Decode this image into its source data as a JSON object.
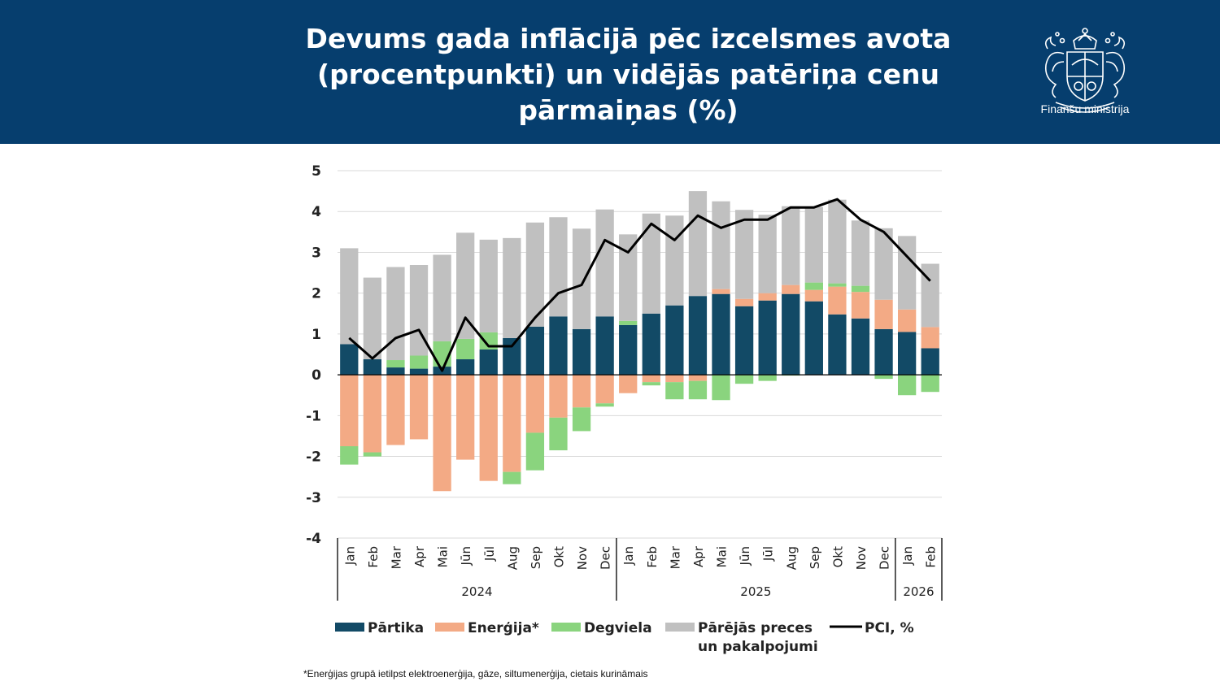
{
  "header": {
    "title": "Devums gada inflācijā pēc izcelsmes avota (procentpunkti) un vidējās patēriņa cenu pārmaiņas (%)",
    "logo_text": "Finanšu ministrija",
    "logo_icon": "coat-of-arms-icon",
    "background": "#063e6e"
  },
  "footnote": "*Enerģijas grupā ietilpst elektroenerģija, gāze, siltumenerģija, cietais kurināmais",
  "chart_data": {
    "type": "bar",
    "stacked": true,
    "categories": [
      "Jan",
      "Feb",
      "Mar",
      "Apr",
      "Mai",
      "Jūn",
      "Jūl",
      "Aug",
      "Sep",
      "Okt",
      "Nov",
      "Dec",
      "Jan",
      "Feb",
      "Mar",
      "Apr",
      "Mai",
      "Jūn",
      "Jūl",
      "Aug",
      "Sep",
      "Okt",
      "Nov",
      "Dec",
      "Jan",
      "Feb"
    ],
    "year_groups": [
      {
        "label": "2024",
        "start": 0,
        "end": 11
      },
      {
        "label": "2025",
        "start": 12,
        "end": 23
      },
      {
        "label": "2026",
        "start": 24,
        "end": 25
      }
    ],
    "ylim": [
      -4,
      5
    ],
    "yticks": [
      5,
      4,
      3,
      2,
      1,
      0,
      -1,
      -2,
      -3,
      -4
    ],
    "ytick_labels": [
      "5",
      "4",
      "3",
      "2",
      "1",
      "0",
      "-1",
      "-2",
      "-3",
      "-4"
    ],
    "grid": true,
    "legend_position": "bottom",
    "series": [
      {
        "name": "Pārtika",
        "color": "#124a66",
        "values": [
          0.75,
          0.38,
          0.18,
          0.15,
          0.2,
          0.38,
          0.62,
          0.9,
          1.18,
          1.43,
          1.12,
          1.43,
          1.22,
          1.5,
          1.7,
          1.93,
          1.98,
          1.68,
          1.82,
          1.98,
          1.8,
          1.48,
          1.38,
          1.12,
          1.05,
          0.65
        ]
      },
      {
        "name": "Enerģija*",
        "color": "#f3aa85",
        "values": [
          -1.75,
          -1.9,
          -1.72,
          -1.58,
          -2.85,
          -2.08,
          -2.6,
          -2.38,
          -1.42,
          -1.05,
          -0.8,
          -0.7,
          -0.45,
          -0.18,
          -0.18,
          -0.15,
          0.12,
          0.18,
          0.18,
          0.22,
          0.28,
          0.68,
          0.65,
          0.72,
          0.55,
          0.52
        ]
      },
      {
        "name": "Degviela",
        "color": "#8ad47e",
        "values": [
          -0.45,
          -0.1,
          0.18,
          0.32,
          0.62,
          0.5,
          0.42,
          -0.3,
          -0.92,
          -0.8,
          -0.58,
          -0.08,
          0.1,
          -0.08,
          -0.42,
          -0.45,
          -0.62,
          -0.22,
          -0.15,
          -0.02,
          0.18,
          0.08,
          0.15,
          -0.1,
          -0.5,
          -0.42
        ]
      },
      {
        "name": "Pārējās preces un pakalpojumi",
        "name_lines": [
          "Pārējās preces",
          "un pakalpojumi"
        ],
        "color": "#c0c0c0",
        "values": [
          2.35,
          2.0,
          2.28,
          2.22,
          2.12,
          2.6,
          2.27,
          2.45,
          2.55,
          2.43,
          2.46,
          2.62,
          2.12,
          2.45,
          2.2,
          2.57,
          2.15,
          2.18,
          1.92,
          1.93,
          1.85,
          2.05,
          1.6,
          1.75,
          1.8,
          1.55
        ]
      },
      {
        "name": "PCI, %",
        "type": "line",
        "color": "#000000",
        "values": [
          0.9,
          0.4,
          0.9,
          1.1,
          0.1,
          1.4,
          0.7,
          0.7,
          1.4,
          2.0,
          2.2,
          3.3,
          3.0,
          3.7,
          3.3,
          3.9,
          3.6,
          3.8,
          3.8,
          4.1,
          4.1,
          4.3,
          3.8,
          3.5,
          2.9,
          2.3
        ]
      }
    ]
  }
}
